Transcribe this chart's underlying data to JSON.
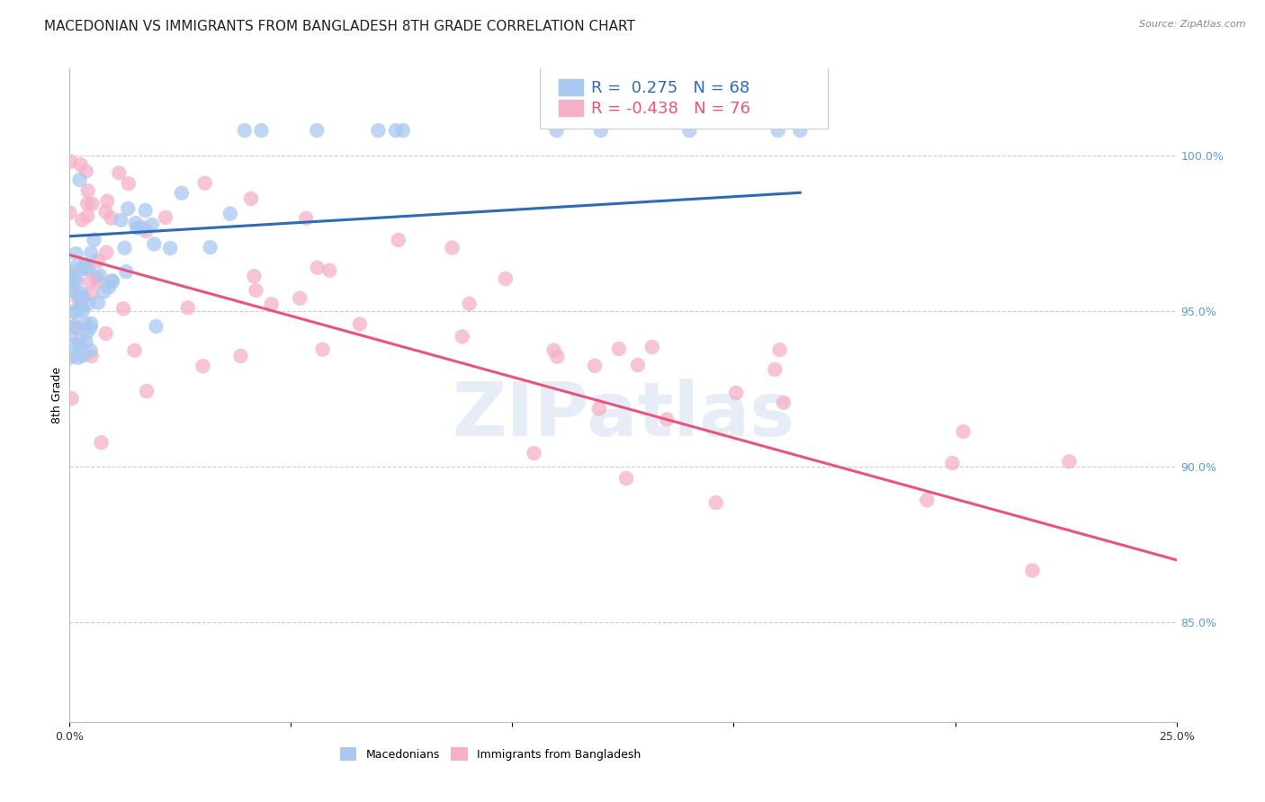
{
  "title": "MACEDONIAN VS IMMIGRANTS FROM BANGLADESH 8TH GRADE CORRELATION CHART",
  "source": "Source: ZipAtlas.com",
  "ylabel": "8th Grade",
  "y_ticks": [
    0.85,
    0.9,
    0.95,
    1.0
  ],
  "y_tick_labels": [
    "85.0%",
    "90.0%",
    "95.0%",
    "100.0%"
  ],
  "xlim": [
    0.0,
    0.25
  ],
  "ylim": [
    0.818,
    1.028
  ],
  "blue_R": 0.275,
  "blue_N": 68,
  "pink_R": -0.438,
  "pink_N": 76,
  "blue_color": "#A8C8F0",
  "pink_color": "#F5B0C8",
  "blue_line_color": "#2F6BB5",
  "pink_line_color": "#E8557A",
  "legend_blue_label": "Macedonians",
  "legend_pink_label": "Immigrants from Bangladesh",
  "watermark": "ZIPatlas",
  "title_fontsize": 11,
  "axis_label_fontsize": 9,
  "tick_fontsize": 9,
  "right_tick_color": "#5B9BD5",
  "background_color": "#FFFFFF",
  "grid_color": "#CCCCCC",
  "blue_line_x": [
    0.0,
    0.165
  ],
  "blue_line_y": [
    0.974,
    0.988
  ],
  "pink_line_x": [
    0.0,
    0.25
  ],
  "pink_line_y": [
    0.968,
    0.87
  ]
}
